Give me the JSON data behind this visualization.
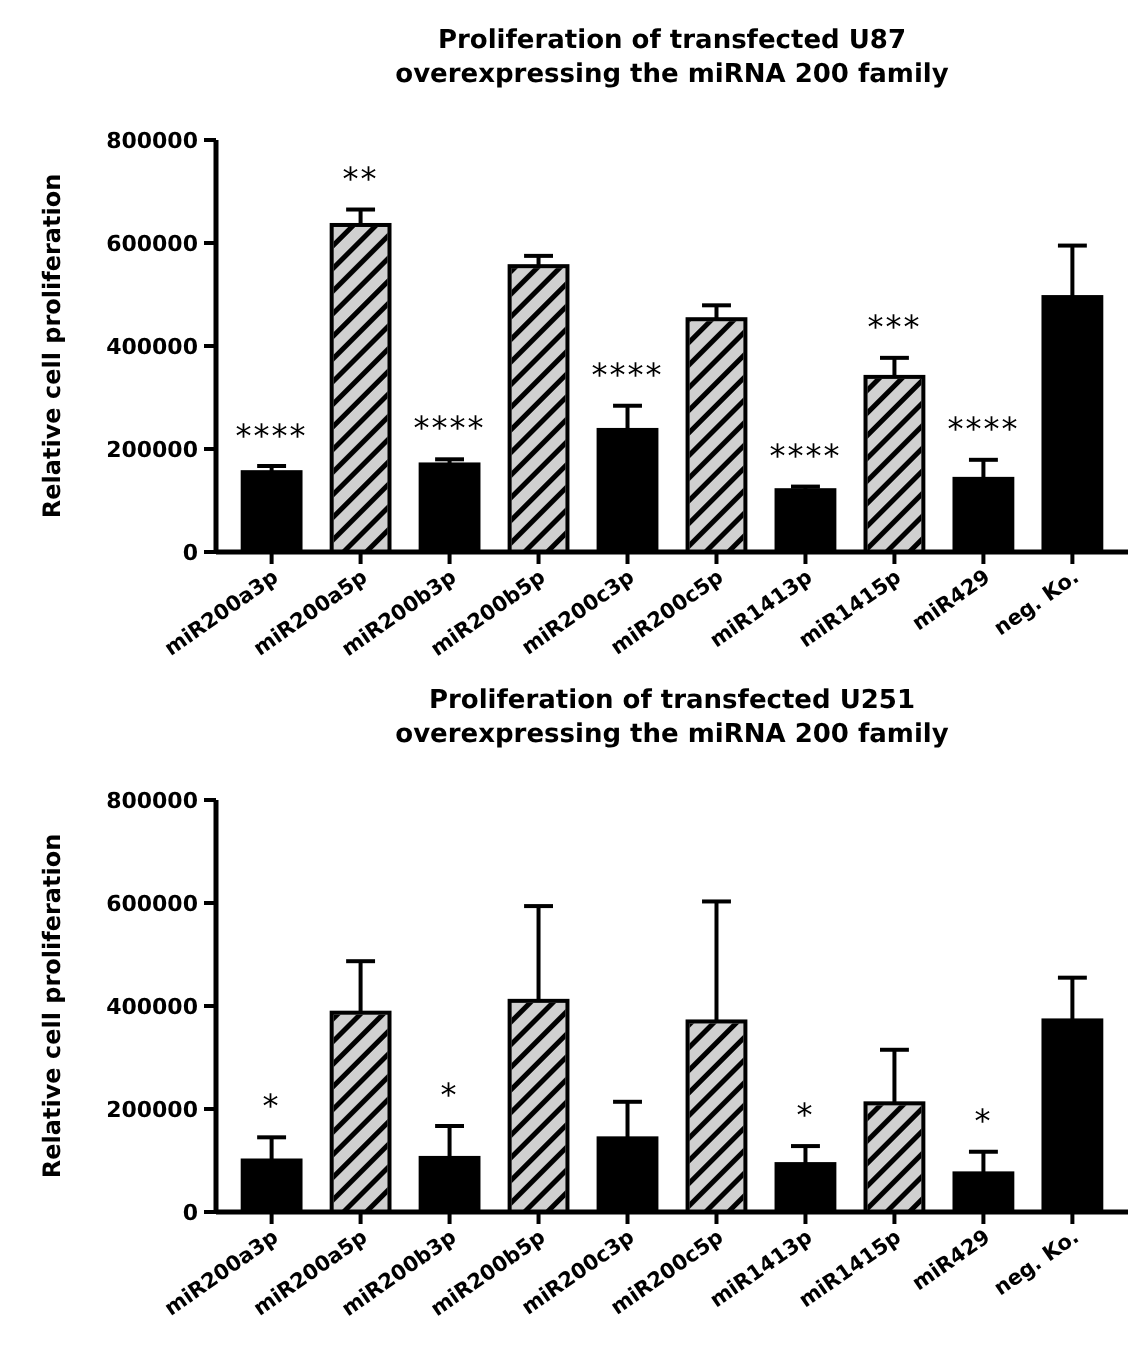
{
  "chart_data": [
    {
      "type": "bar",
      "title": "Proliferation of transfected U87\noverexpressing the miRNA 200 family",
      "ylabel": "Relative cell proliferation",
      "categories": [
        "miR200a3p",
        "miR200a5p",
        "miR200b3p",
        "miR200b5p",
        "miR200c3p",
        "miR200c5p",
        "miR1413p",
        "miR1415p",
        "miR429",
        "neg. Ko."
      ],
      "values": [
        155000,
        635000,
        170000,
        555000,
        237000,
        452000,
        120000,
        340000,
        142000,
        495000
      ],
      "errors": [
        12000,
        30000,
        10000,
        20000,
        47000,
        27000,
        7000,
        37000,
        37000,
        100000
      ],
      "colors": [
        "#000000",
        "#d0d0d0",
        "#000000",
        "#d0d0d0",
        "#000000",
        "#d0d0d0",
        "#000000",
        "#d0d0d0",
        "#000000",
        "#000000"
      ],
      "ylim": [
        0,
        800000
      ],
      "yticks": [
        0,
        200000,
        400000,
        600000,
        800000
      ],
      "grid": false,
      "annotations": [
        {
          "text": "****",
          "x": "miR200a3p",
          "y": 166000
        },
        {
          "text": "**",
          "x": "miR200a5p",
          "y": 665000
        },
        {
          "text": "****",
          "x": "miR200b3p",
          "y": 180000
        },
        {
          "text": "****",
          "x": "miR200c3p",
          "y": 284000
        },
        {
          "text": "****",
          "x": "miR1413p",
          "y": 127000
        },
        {
          "text": "***",
          "x": "miR1415p",
          "y": 377000
        },
        {
          "text": "****",
          "x": "miR429",
          "y": 179000
        }
      ]
    },
    {
      "type": "bar",
      "title": "Proliferation of transfected U251\noverexpressing the miRNA 200 family",
      "ylabel": "Relative cell proliferation",
      "categories": [
        "miR200a3p",
        "miR200a5p",
        "miR200b3p",
        "miR200b5p",
        "miR200c3p",
        "miR200c5p",
        "miR1413p",
        "miR1415p",
        "miR429",
        "neg. Ko."
      ],
      "values": [
        100000,
        387000,
        105000,
        410000,
        143000,
        370000,
        93000,
        211000,
        75000,
        372000
      ],
      "errors": [
        45000,
        100000,
        62000,
        184000,
        71000,
        233000,
        35000,
        104000,
        42000,
        83000
      ],
      "colors": [
        "#000000",
        "#d0d0d0",
        "#000000",
        "#d0d0d0",
        "#000000",
        "#d0d0d0",
        "#000000",
        "#d0d0d0",
        "#000000",
        "#000000"
      ],
      "ylim": [
        0,
        800000
      ],
      "yticks": [
        0,
        200000,
        400000,
        600000,
        800000
      ],
      "grid": false,
      "annotations": [
        {
          "text": "*",
          "x": "miR200a3p",
          "y": 145000
        },
        {
          "text": "*",
          "x": "miR200b3p",
          "y": 167000
        },
        {
          "text": "*",
          "x": "miR1413p",
          "y": 128000
        },
        {
          "text": "*",
          "x": "miR429",
          "y": 117000
        }
      ]
    }
  ]
}
